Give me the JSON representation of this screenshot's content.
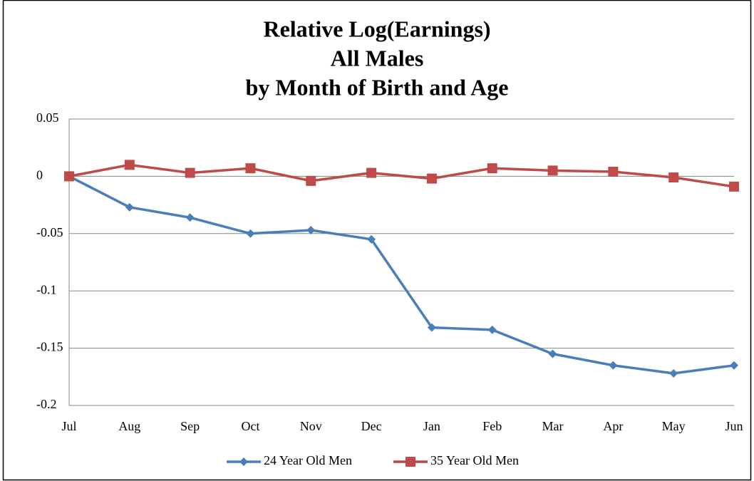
{
  "chart_data": {
    "type": "line",
    "title": [
      "Relative Log(Earnings)",
      "All Males",
      "by Month of Birth and Age"
    ],
    "categories": [
      "Jul",
      "Aug",
      "Sep",
      "Oct",
      "Nov",
      "Dec",
      "Jan",
      "Feb",
      "Mar",
      "Apr",
      "May",
      "Jun"
    ],
    "series": [
      {
        "name": "24 Year Old Men",
        "color": "#4a7ebb",
        "marker": "diamond",
        "values": [
          0,
          -0.027,
          -0.036,
          -0.05,
          -0.047,
          -0.055,
          -0.132,
          -0.134,
          -0.155,
          -0.165,
          -0.172,
          -0.165
        ]
      },
      {
        "name": "35 Year Old Men",
        "color": "#be4b48",
        "marker": "square",
        "values": [
          0,
          0.01,
          0.003,
          0.007,
          -0.004,
          0.003,
          -0.002,
          0.007,
          0.005,
          0.004,
          -0.001,
          -0.009
        ]
      }
    ],
    "ylim": [
      -0.2,
      0.05
    ],
    "yticks": [
      0.05,
      0,
      -0.05,
      -0.1,
      -0.15,
      -0.2
    ],
    "grid": true,
    "legend": "bottom"
  }
}
